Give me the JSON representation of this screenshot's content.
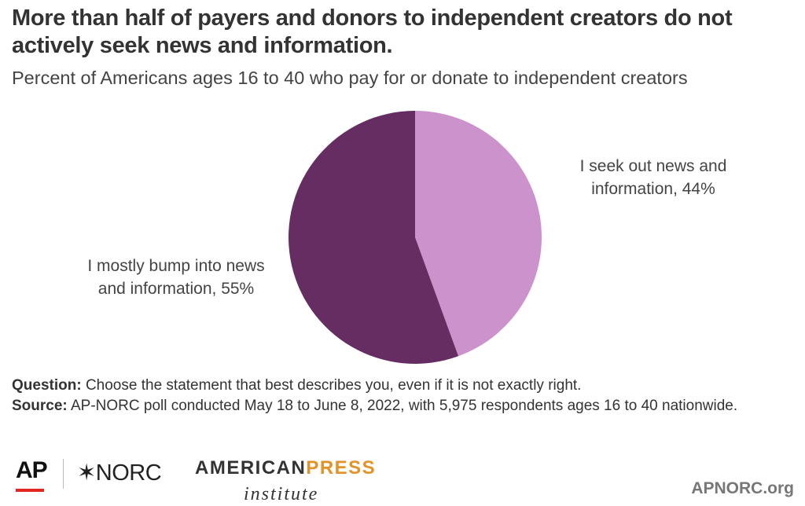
{
  "title": "More than half of payers and donors to independent creators do not actively seek news and information.",
  "subtitle": "Percent of Americans ages 16 to 40 who pay for or donate to independent creators",
  "chart_data": {
    "type": "pie",
    "title": "More than half of payers and donors to independent creators do not actively seek news and information.",
    "subtitle": "Percent of Americans ages 16 to 40 who pay for or donate to independent creators",
    "slices": [
      {
        "label": "I seek out news and information",
        "value": 44,
        "color": "#cb92cb",
        "label_lines": [
          "I seek out news and",
          "information, 44%"
        ]
      },
      {
        "label": "I mostly bump into news and information",
        "value": 55,
        "color": "#652d61",
        "label_lines": [
          "I mostly bump into news",
          "and information, 55%"
        ]
      }
    ],
    "start": "12 o'clock",
    "direction": "clockwise"
  },
  "notes": {
    "question_label": "Question:",
    "question_text": "Choose the statement that best describes you, even if it is not exactly right.",
    "source_label": "Source:",
    "source_text": "AP-NORC poll conducted May 18 to June 8, 2022, with 5,975 respondents ages 16 to 40 nationwide."
  },
  "footer": {
    "ap_logo": "AP",
    "norc_logo": "✶NORC",
    "api_american": "AMERICAN",
    "api_press": "PRESS",
    "api_institute": "institute",
    "site": "APNORC.org"
  }
}
